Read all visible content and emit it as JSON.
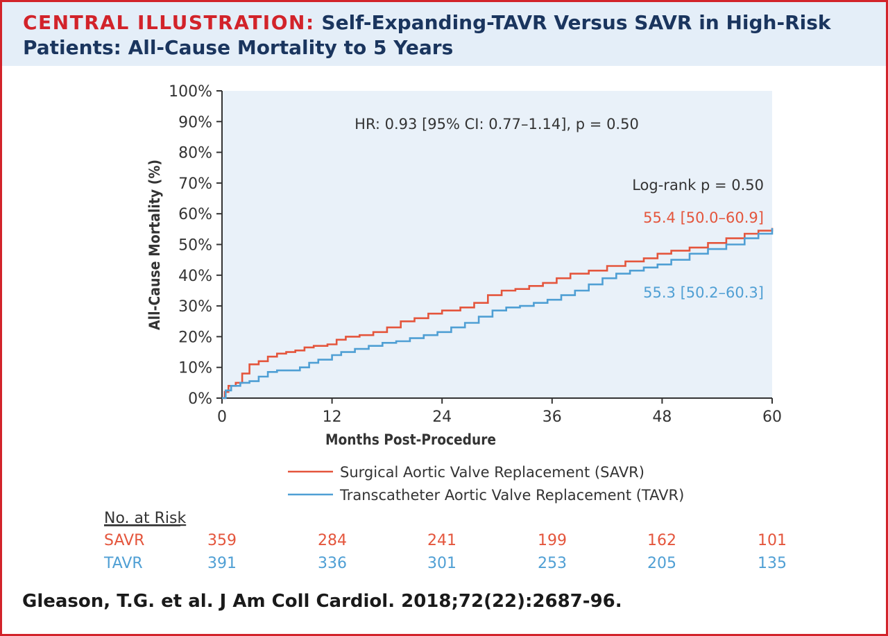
{
  "header": {
    "prefix": "CENTRAL ILLUSTRATION:",
    "title": "Self-Expanding-TAVR Versus SAVR in High-Risk Patients: All-Cause Mortality to 5 Years"
  },
  "colors": {
    "brand_red": "#d2232a",
    "navy": "#1a355e",
    "header_bg": "#e4eef8",
    "plot_bg": "#e9f1f9",
    "savr": "#e4553c",
    "tavr": "#4f9fd4"
  },
  "chart_data": {
    "type": "line",
    "title": "",
    "xlabel": "Months Post-Procedure",
    "ylabel": "All-Cause Mortality (%)",
    "xlim": [
      0,
      60
    ],
    "ylim": [
      0,
      100
    ],
    "x_ticks": [
      "0",
      "12",
      "24",
      "36",
      "48",
      "60"
    ],
    "y_ticks": [
      "0%",
      "10%",
      "20%",
      "30%",
      "40%",
      "50%",
      "60%",
      "70%",
      "80%",
      "90%",
      "100%"
    ],
    "grid": false,
    "series": [
      {
        "name": "Surgical Aortic Valve Replacement (SAVR)",
        "color": "#e4553c",
        "points": [
          [
            0,
            0
          ],
          [
            0.3,
            2
          ],
          [
            0.7,
            4
          ],
          [
            1.5,
            5
          ],
          [
            2.2,
            8
          ],
          [
            3,
            11
          ],
          [
            4,
            12
          ],
          [
            5,
            13.5
          ],
          [
            6,
            14.5
          ],
          [
            7,
            15
          ],
          [
            8,
            15.5
          ],
          [
            9,
            16.5
          ],
          [
            10,
            17
          ],
          [
            11.5,
            17.5
          ],
          [
            12.5,
            19
          ],
          [
            13.5,
            20
          ],
          [
            15,
            20.5
          ],
          [
            16.5,
            21.5
          ],
          [
            18,
            23
          ],
          [
            19.5,
            25
          ],
          [
            21,
            26
          ],
          [
            22.5,
            27.5
          ],
          [
            24,
            28.5
          ],
          [
            26,
            29.5
          ],
          [
            27.5,
            31
          ],
          [
            29,
            33.5
          ],
          [
            30.5,
            35
          ],
          [
            32,
            35.5
          ],
          [
            33.5,
            36.5
          ],
          [
            35,
            37.5
          ],
          [
            36.5,
            39
          ],
          [
            38,
            40.5
          ],
          [
            40,
            41.5
          ],
          [
            42,
            43
          ],
          [
            44,
            44.5
          ],
          [
            46,
            45.5
          ],
          [
            47.5,
            47
          ],
          [
            49,
            48
          ],
          [
            51,
            49
          ],
          [
            53,
            50.5
          ],
          [
            55,
            52
          ],
          [
            57,
            53.5
          ],
          [
            58.5,
            54.5
          ],
          [
            60,
            55.4
          ]
        ],
        "label": "55.4 [50.0–60.9]"
      },
      {
        "name": "Transcatheter Aortic Valve Replacement (TAVR)",
        "color": "#4f9fd4",
        "points": [
          [
            0,
            0
          ],
          [
            0.4,
            2.5
          ],
          [
            1,
            4
          ],
          [
            2,
            5
          ],
          [
            3,
            5.5
          ],
          [
            4,
            7
          ],
          [
            5,
            8.5
          ],
          [
            6,
            9
          ],
          [
            7.5,
            9
          ],
          [
            8.5,
            10
          ],
          [
            9.5,
            11.5
          ],
          [
            10.5,
            12.5
          ],
          [
            12,
            14
          ],
          [
            13,
            15
          ],
          [
            14.5,
            16
          ],
          [
            16,
            17
          ],
          [
            17.5,
            18
          ],
          [
            19,
            18.5
          ],
          [
            20.5,
            19.5
          ],
          [
            22,
            20.5
          ],
          [
            23.5,
            21.5
          ],
          [
            25,
            23
          ],
          [
            26.5,
            24.5
          ],
          [
            28,
            26.5
          ],
          [
            29.5,
            28.5
          ],
          [
            31,
            29.5
          ],
          [
            32.5,
            30
          ],
          [
            34,
            31
          ],
          [
            35.5,
            32
          ],
          [
            37,
            33.5
          ],
          [
            38.5,
            35
          ],
          [
            40,
            37
          ],
          [
            41.5,
            39
          ],
          [
            43,
            40.5
          ],
          [
            44.5,
            41.5
          ],
          [
            46,
            42.5
          ],
          [
            47.5,
            43.5
          ],
          [
            49,
            45
          ],
          [
            51,
            47
          ],
          [
            53,
            48.5
          ],
          [
            55,
            50
          ],
          [
            57,
            52
          ],
          [
            58.5,
            53.5
          ],
          [
            60,
            55.3
          ]
        ],
        "label": "55.3 [50.2–60.3]"
      }
    ],
    "annotations": {
      "hr": "HR: 0.93 [95% CI: 0.77–1.14], p = 0.50",
      "logrank": "Log-rank p = 0.50"
    },
    "legend_position": "bottom",
    "numbers_at_risk": {
      "heading": "No. at Risk",
      "rows": [
        {
          "label": "SAVR",
          "color": "#e4553c",
          "values": [
            "359",
            "284",
            "241",
            "199",
            "162",
            "101"
          ]
        },
        {
          "label": "TAVR",
          "color": "#4f9fd4",
          "values": [
            "391",
            "336",
            "301",
            "253",
            "205",
            "135"
          ]
        }
      ]
    }
  },
  "citation": "Gleason, T.G. et al. J Am Coll Cardiol. 2018;72(22):2687-96."
}
